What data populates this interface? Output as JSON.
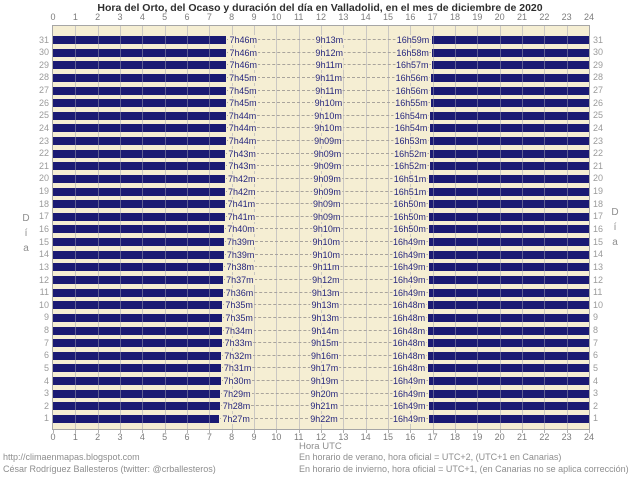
{
  "title": "Hora del Orto, del Ocaso y duración del día en Valladolid, en el mes de diciembre de 2020",
  "axes": {
    "x_title": "Hora UTC",
    "y_title_letters": [
      "D",
      "í",
      "a"
    ],
    "x_ticks": [
      "0",
      "1",
      "2",
      "3",
      "4",
      "5",
      "6",
      "7",
      "8",
      "9",
      "10",
      "11",
      "12",
      "13",
      "14",
      "15",
      "16",
      "17",
      "18",
      "19",
      "20",
      "21",
      "22",
      "23",
      "24"
    ]
  },
  "chart_data": {
    "type": "bar",
    "subtype": "horizontal-day-night-gantt",
    "title": "Hora del Orto, del Ocaso y duración del día en Valladolid, en el mes de diciembre de 2020",
    "xlabel": "Hora UTC",
    "ylabel": "Día",
    "xlim": [
      0,
      24
    ],
    "x_tick_step": 1,
    "grid": true,
    "legend": false,
    "description": "Each row (day of month, 31 at top to 1 at bottom) shows night as dark bars from 0h to sunrise (orto) and from sunset (ocaso) to 24h; labels give sunrise time, day length (duración) and sunset time.",
    "rows": [
      {
        "day": 1,
        "orto": "7h27m",
        "duracion": "9h22m",
        "ocaso": "16h49m"
      },
      {
        "day": 2,
        "orto": "7h28m",
        "duracion": "9h21m",
        "ocaso": "16h49m"
      },
      {
        "day": 3,
        "orto": "7h29m",
        "duracion": "9h20m",
        "ocaso": "16h49m"
      },
      {
        "day": 4,
        "orto": "7h30m",
        "duracion": "9h19m",
        "ocaso": "16h49m"
      },
      {
        "day": 5,
        "orto": "7h31m",
        "duracion": "9h17m",
        "ocaso": "16h48m"
      },
      {
        "day": 6,
        "orto": "7h32m",
        "duracion": "9h16m",
        "ocaso": "16h48m"
      },
      {
        "day": 7,
        "orto": "7h33m",
        "duracion": "9h15m",
        "ocaso": "16h48m"
      },
      {
        "day": 8,
        "orto": "7h34m",
        "duracion": "9h14m",
        "ocaso": "16h48m"
      },
      {
        "day": 9,
        "orto": "7h35m",
        "duracion": "9h13m",
        "ocaso": "16h48m"
      },
      {
        "day": 10,
        "orto": "7h35m",
        "duracion": "9h13m",
        "ocaso": "16h48m"
      },
      {
        "day": 11,
        "orto": "7h36m",
        "duracion": "9h13m",
        "ocaso": "16h49m"
      },
      {
        "day": 12,
        "orto": "7h37m",
        "duracion": "9h12m",
        "ocaso": "16h49m"
      },
      {
        "day": 13,
        "orto": "7h38m",
        "duracion": "9h11m",
        "ocaso": "16h49m"
      },
      {
        "day": 14,
        "orto": "7h39m",
        "duracion": "9h10m",
        "ocaso": "16h49m"
      },
      {
        "day": 15,
        "orto": "7h39m",
        "duracion": "9h10m",
        "ocaso": "16h49m"
      },
      {
        "day": 16,
        "orto": "7h40m",
        "duracion": "9h10m",
        "ocaso": "16h50m"
      },
      {
        "day": 17,
        "orto": "7h41m",
        "duracion": "9h09m",
        "ocaso": "16h50m"
      },
      {
        "day": 18,
        "orto": "7h41m",
        "duracion": "9h09m",
        "ocaso": "16h50m"
      },
      {
        "day": 19,
        "orto": "7h42m",
        "duracion": "9h09m",
        "ocaso": "16h51m"
      },
      {
        "day": 20,
        "orto": "7h42m",
        "duracion": "9h09m",
        "ocaso": "16h51m"
      },
      {
        "day": 21,
        "orto": "7h43m",
        "duracion": "9h09m",
        "ocaso": "16h52m"
      },
      {
        "day": 22,
        "orto": "7h43m",
        "duracion": "9h09m",
        "ocaso": "16h52m"
      },
      {
        "day": 23,
        "orto": "7h44m",
        "duracion": "9h09m",
        "ocaso": "16h53m"
      },
      {
        "day": 24,
        "orto": "7h44m",
        "duracion": "9h10m",
        "ocaso": "16h54m"
      },
      {
        "day": 25,
        "orto": "7h44m",
        "duracion": "9h10m",
        "ocaso": "16h54m"
      },
      {
        "day": 26,
        "orto": "7h45m",
        "duracion": "9h10m",
        "ocaso": "16h55m"
      },
      {
        "day": 27,
        "orto": "7h45m",
        "duracion": "9h11m",
        "ocaso": "16h56m"
      },
      {
        "day": 28,
        "orto": "7h45m",
        "duracion": "9h11m",
        "ocaso": "16h56m"
      },
      {
        "day": 29,
        "orto": "7h46m",
        "duracion": "9h11m",
        "ocaso": "16h57m"
      },
      {
        "day": 30,
        "orto": "7h46m",
        "duracion": "9h12m",
        "ocaso": "16h58m"
      },
      {
        "day": 31,
        "orto": "7h46m",
        "duracion": "9h13m",
        "ocaso": "16h59m"
      }
    ]
  },
  "colors": {
    "night_bar": "#1a1a73",
    "plot_background": "#f5eed3",
    "time_label_text": "#26267e",
    "axis_text": "#7c7c7c",
    "day_number_text": "#9b9b9b",
    "secondary_text": "#8e8e8e",
    "plot_border": "#a6a6a6"
  },
  "footer": {
    "left": [
      "http://climaenmapas.blogspot.com",
      "César Rodríguez Ballesteros (twitter: @crballesteros)"
    ],
    "right": [
      "En horario de verano, hora oficial = UTC+2, (UTC+1 en Canarias)",
      "En horario de invierno, hora oficial = UTC+1, (en Canarias no se aplica corrección)"
    ]
  }
}
